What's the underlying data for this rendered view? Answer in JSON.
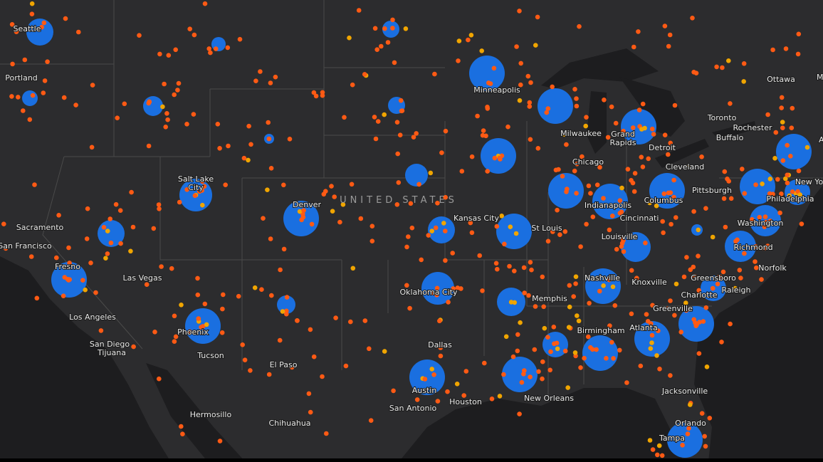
{
  "map": {
    "country_label": "UNITED STATES",
    "cities": [
      "Seattle",
      "Portland",
      "Sacramento",
      "San Francisco",
      "Fresno",
      "Las Vegas",
      "Los Angeles",
      "San Diego",
      "Tijuana",
      "Hermosillo",
      "Chihuahua",
      "Phoenix",
      "Tucson",
      "El Paso",
      "Salt Lake",
      "City",
      "Denver",
      "Kansas City",
      "St Louis",
      "Oklahoma City",
      "Dallas",
      "Austin",
      "San Antonio",
      "Houston",
      "Memphis",
      "New Orleans",
      "Birmingham",
      "Atlanta",
      "Nashville",
      "Louisville",
      "Indianapolis",
      "Chicago",
      "Milwaukee",
      "Grand",
      "Rapids",
      "Detroit",
      "Minneapolis",
      "Cincinnati",
      "Columbus",
      "Cleveland",
      "Pittsburgh",
      "Toronto",
      "Buffalo",
      "Rochester",
      "Ottawa",
      "Montreal",
      "Albany",
      "New York",
      "Philadelphia",
      "Washington",
      "Richmond",
      "Norfolk",
      "Greensboro",
      "Raleigh",
      "Charlotte",
      "Greenville",
      "Knoxville",
      "Jacksonville",
      "Orlando",
      "Tampa"
    ]
  }
}
